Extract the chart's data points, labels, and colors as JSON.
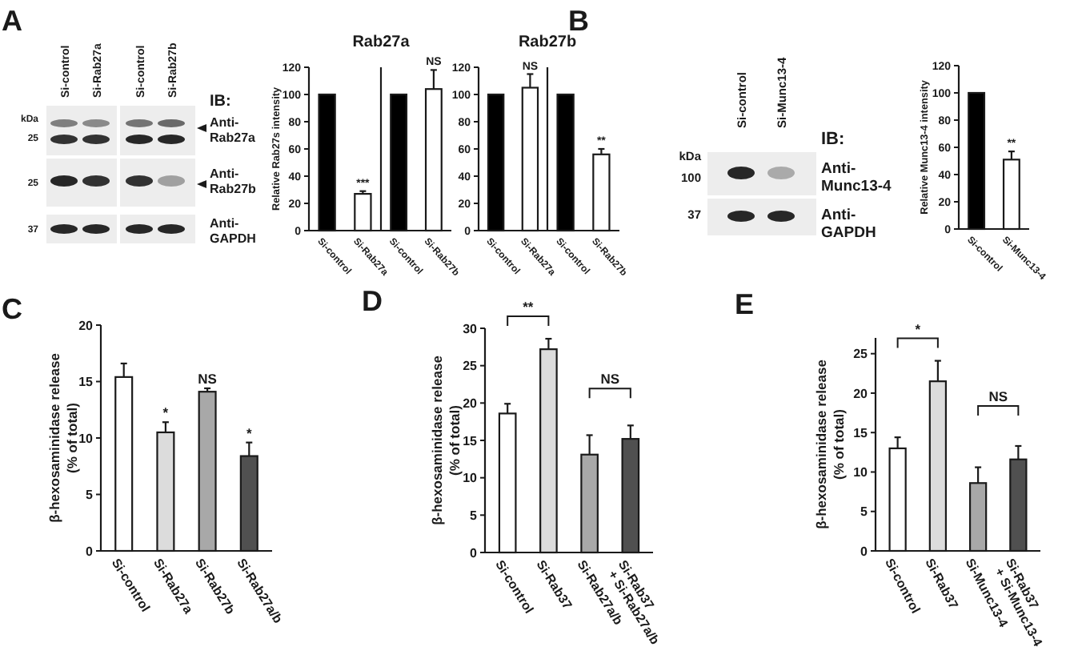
{
  "chart_data": [
    {
      "type": "other",
      "title": "A",
      "categories": [
        "Si-control",
        "Si-Rab27a",
        "Si-control",
        "Si-Rab27b"
      ],
      "ylabel": "kDa",
      "y_categories": [
        "25",
        "25",
        "37"
      ],
      "y2label": "IB:",
      "y2_categories": [
        "Anti-Rab27a",
        "Anti-Rab27b",
        "Anti-GAPDH"
      ]
    },
    {
      "type": "bar",
      "title": "Rab27a",
      "ylabel": "Relative Rab27s intensity",
      "categories": [
        "Si-control",
        "Si-Rab27a"
      ],
      "values": [
        100,
        27
      ],
      "colors": [
        "#000000",
        "#ffffff"
      ],
      "errors": [
        null,
        2
      ],
      "value_labels": [
        null,
        "***"
      ],
      "ylim": [
        0,
        120
      ],
      "yticks": [
        0,
        20,
        40,
        60,
        80,
        100,
        120
      ]
    },
    {
      "type": "bar",
      "categories": [
        "Si-control",
        "Si-Rab27b"
      ],
      "values": [
        100,
        104
      ],
      "colors": [
        "#000000",
        "#ffffff"
      ],
      "errors": [
        null,
        14
      ],
      "value_labels": [
        null,
        "NS"
      ],
      "ylim": [
        0,
        120
      ],
      "tick_labels": "x"
    },
    {
      "type": "bar",
      "title": "Rab27b",
      "categories": [
        "Si-control",
        "Si-Rab27a"
      ],
      "values": [
        100,
        105
      ],
      "colors": [
        "#000000",
        "#ffffff"
      ],
      "errors": [
        null,
        10
      ],
      "value_labels": [
        null,
        "NS"
      ],
      "ylim": [
        0,
        120
      ],
      "yticks": [
        0,
        20,
        40,
        60,
        80,
        100,
        120
      ]
    },
    {
      "type": "bar",
      "categories": [
        "Si-control",
        "Si-Rab27b"
      ],
      "values": [
        100,
        56
      ],
      "colors": [
        "#000000",
        "#ffffff"
      ],
      "errors": [
        null,
        4
      ],
      "value_labels": [
        null,
        "**"
      ],
      "ylim": [
        0,
        120
      ],
      "tick_labels": "x"
    },
    {
      "type": "other",
      "title": "B",
      "categories": [
        "Si-control",
        "Si-Munc13-4"
      ],
      "ylabel": "kDa",
      "y_categories": [
        "100",
        "37"
      ],
      "y2label": "IB:",
      "y2_categories": [
        "Anti-Munc13-4",
        "Anti-GAPDH"
      ]
    },
    {
      "type": "bar",
      "ylabel": "Relative Munc13-4 intensity",
      "categories": [
        "Si-control",
        "Si-Munc13-4"
      ],
      "values": [
        100,
        51
      ],
      "colors": [
        "#000000",
        "#ffffff"
      ],
      "errors": [
        null,
        6
      ],
      "value_labels": [
        null,
        "**"
      ],
      "ylim": [
        0,
        120
      ],
      "yticks": [
        0,
        20,
        40,
        60,
        80,
        100,
        120
      ]
    },
    {
      "type": "bar",
      "title": "C",
      "ylabel": "β-hexosaminidase release (% of total)",
      "categories": [
        "Si-control",
        "Si-Rab27a",
        "Si-Rab27b",
        "Si-Rab27a/b"
      ],
      "values": [
        15.4,
        10.5,
        14.1,
        8.4
      ],
      "colors": [
        "#ffffff",
        "#dcdcdc",
        "#a8a8a8",
        "#505050"
      ],
      "errors": [
        1.2,
        0.9,
        0.3,
        1.2
      ],
      "value_labels": [
        null,
        "*",
        "NS",
        "*"
      ],
      "ylim": [
        0,
        20
      ],
      "yticks": [
        0,
        5,
        10,
        15,
        20
      ]
    },
    {
      "type": "bar",
      "title": "D",
      "ylabel": "β-hexosaminidase release (% of total)",
      "categories": [
        "Si-control",
        "Si-Rab37",
        "Si-Rab27a/b",
        "Si-Rab37 + Si-Rab27a/b"
      ],
      "values": [
        18.6,
        27.2,
        13.1,
        15.2
      ],
      "colors": [
        "#ffffff",
        "#dcdcdc",
        "#a8a8a8",
        "#505050"
      ],
      "errors": [
        1.3,
        1.4,
        2.6,
        1.8
      ],
      "annotations": [
        "**",
        "NS"
      ],
      "ylim": [
        0,
        30
      ],
      "yticks": [
        0,
        5,
        10,
        15,
        20,
        25,
        30
      ]
    },
    {
      "type": "bar",
      "title": "E",
      "ylabel": "β-hexosaminidase release (% of total)",
      "categories": [
        "Si-control",
        "Si-Rab37",
        "Si-Munc13-4",
        "Si-Rab37 + Si-Munc13-4"
      ],
      "values": [
        13.0,
        21.5,
        8.6,
        11.6
      ],
      "colors": [
        "#ffffff",
        "#dcdcdc",
        "#a8a8a8",
        "#505050"
      ],
      "errors": [
        1.4,
        2.6,
        2.0,
        1.7
      ],
      "annotations": [
        "*",
        "NS"
      ],
      "ylim": [
        0,
        27
      ],
      "yticks": [
        0,
        5,
        10,
        15,
        20,
        25
      ]
    }
  ]
}
